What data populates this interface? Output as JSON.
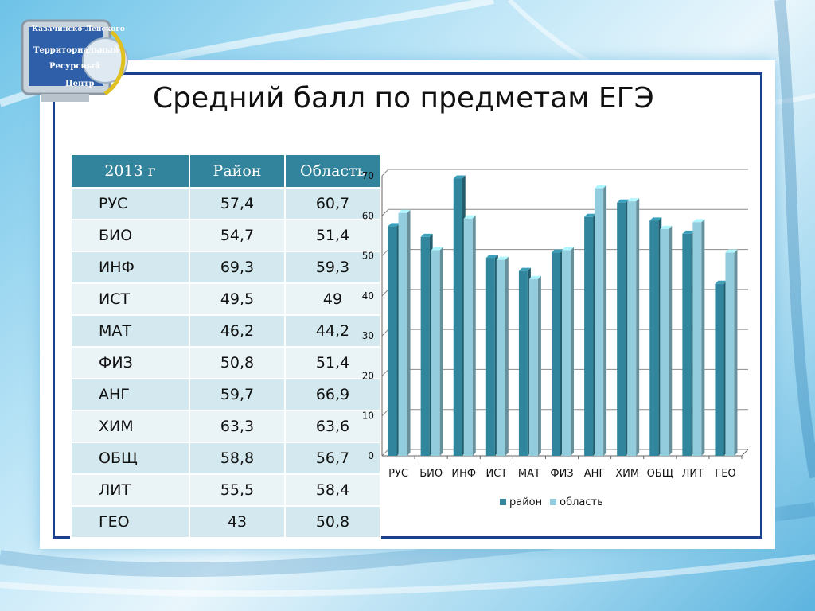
{
  "logo": {
    "caption_top": "Казачинско-Ленского",
    "caption_lines": [
      "Территориальный",
      "Ресурсный",
      "Центр"
    ]
  },
  "title": "Средний балл по предметам ЕГЭ",
  "table": {
    "headers": [
      "2013 г",
      "Район",
      "Область"
    ],
    "rows": [
      {
        "subject": "РУС",
        "district": "57,4",
        "region": "60,7"
      },
      {
        "subject": "БИО",
        "district": "54,7",
        "region": "51,4"
      },
      {
        "subject": "ИНФ",
        "district": "69,3",
        "region": "59,3"
      },
      {
        "subject": "ИСТ",
        "district": "49,5",
        "region": "49"
      },
      {
        "subject": "МАТ",
        "district": "46,2",
        "region": "44,2"
      },
      {
        "subject": "ФИЗ",
        "district": "50,8",
        "region": "51,4"
      },
      {
        "subject": "АНГ",
        "district": "59,7",
        "region": "66,9"
      },
      {
        "subject": "ХИМ",
        "district": "63,3",
        "region": "63,6"
      },
      {
        "subject": "ОБЩ",
        "district": "58,8",
        "region": "56,7"
      },
      {
        "subject": "ЛИТ",
        "district": "55,5",
        "region": "58,4"
      },
      {
        "subject": "ГЕО",
        "district": "43",
        "region": "50,8"
      }
    ]
  },
  "chart_data": {
    "type": "bar",
    "categories": [
      "РУС",
      "БИО",
      "ИНФ",
      "ИСТ",
      "МАТ",
      "ФИЗ",
      "АНГ",
      "ХИМ",
      "ОБЩ",
      "ЛИТ",
      "ГЕО"
    ],
    "series": [
      {
        "name": "район",
        "values": [
          57.4,
          54.7,
          69.3,
          49.5,
          46.2,
          50.8,
          59.7,
          63.3,
          58.8,
          55.5,
          43
        ],
        "color": "#31859c"
      },
      {
        "name": "область",
        "values": [
          60.7,
          51.4,
          59.3,
          49,
          44.2,
          51.4,
          66.9,
          63.6,
          56.7,
          58.4,
          50.8
        ],
        "color": "#93cddd"
      }
    ],
    "ylim": [
      0,
      70
    ],
    "yticks": [
      0,
      10,
      20,
      30,
      40,
      50,
      60,
      70
    ],
    "grid": true,
    "legend": "bottom",
    "style": "3d-bars"
  }
}
